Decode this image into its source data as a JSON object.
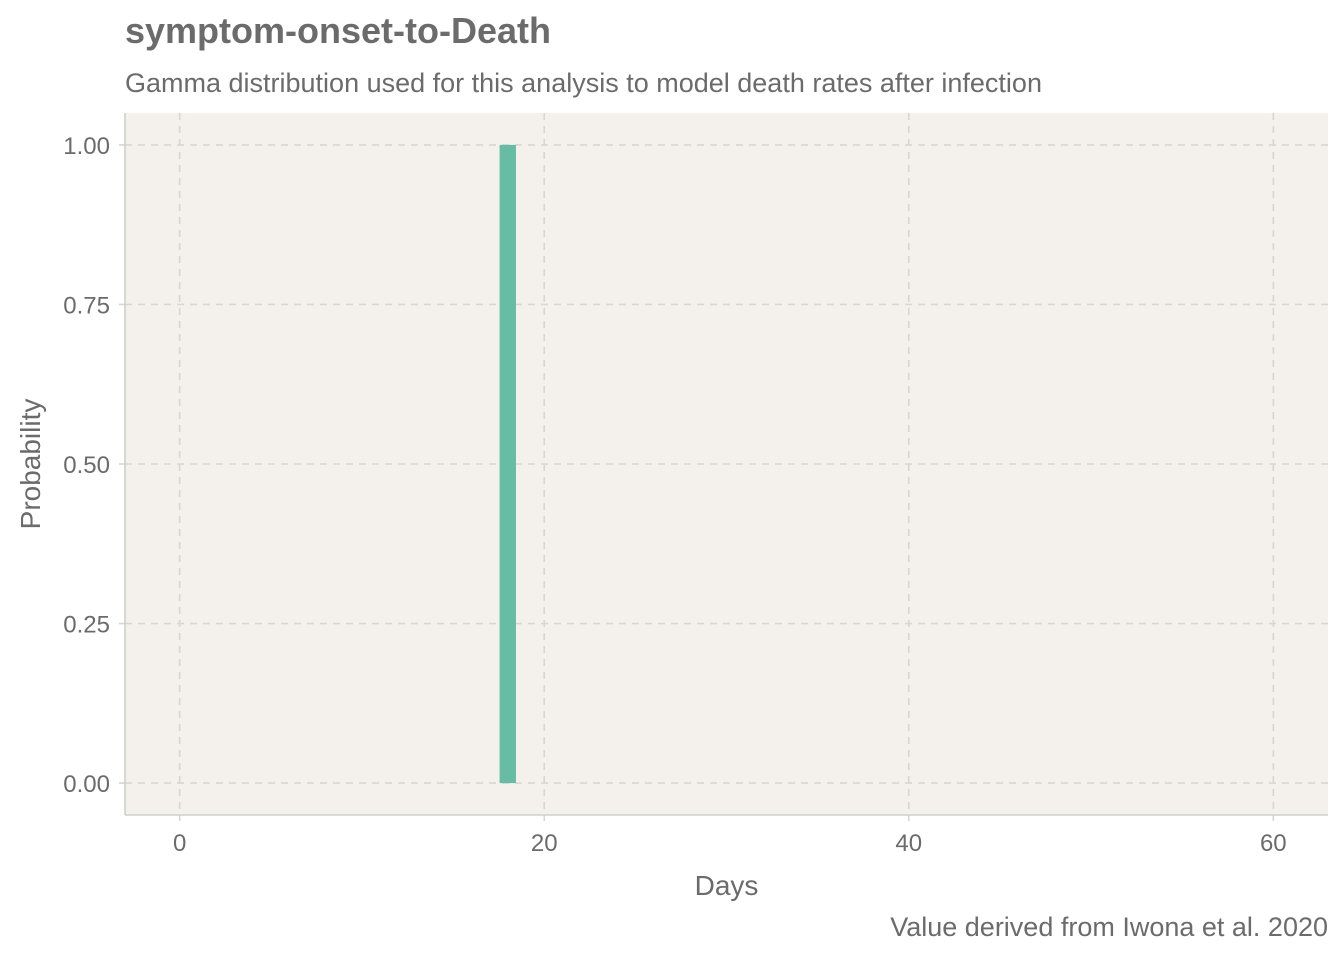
{
  "chart_data": {
    "type": "bar",
    "title": "symptom-onset-to-Death",
    "subtitle": "Gamma distribution used for this analysis to model death rates after infection",
    "caption": "Value derived from Iwona et al. 2020",
    "xlabel": "Days",
    "ylabel": "Probability",
    "x_ticks": [
      0,
      20,
      40,
      60
    ],
    "y_ticks": [
      "0.00",
      "0.25",
      "0.50",
      "0.75",
      "1.00"
    ],
    "xlim": [
      -3,
      63
    ],
    "ylim": [
      -0.05,
      1.05
    ],
    "grid": true,
    "bars": [
      {
        "x": 18,
        "y": 1.0
      }
    ],
    "colors": {
      "bar": "#66bda3",
      "panel": "#f4f0eb",
      "grid": "#d9d6d1",
      "text": "#6b6b6b"
    }
  }
}
